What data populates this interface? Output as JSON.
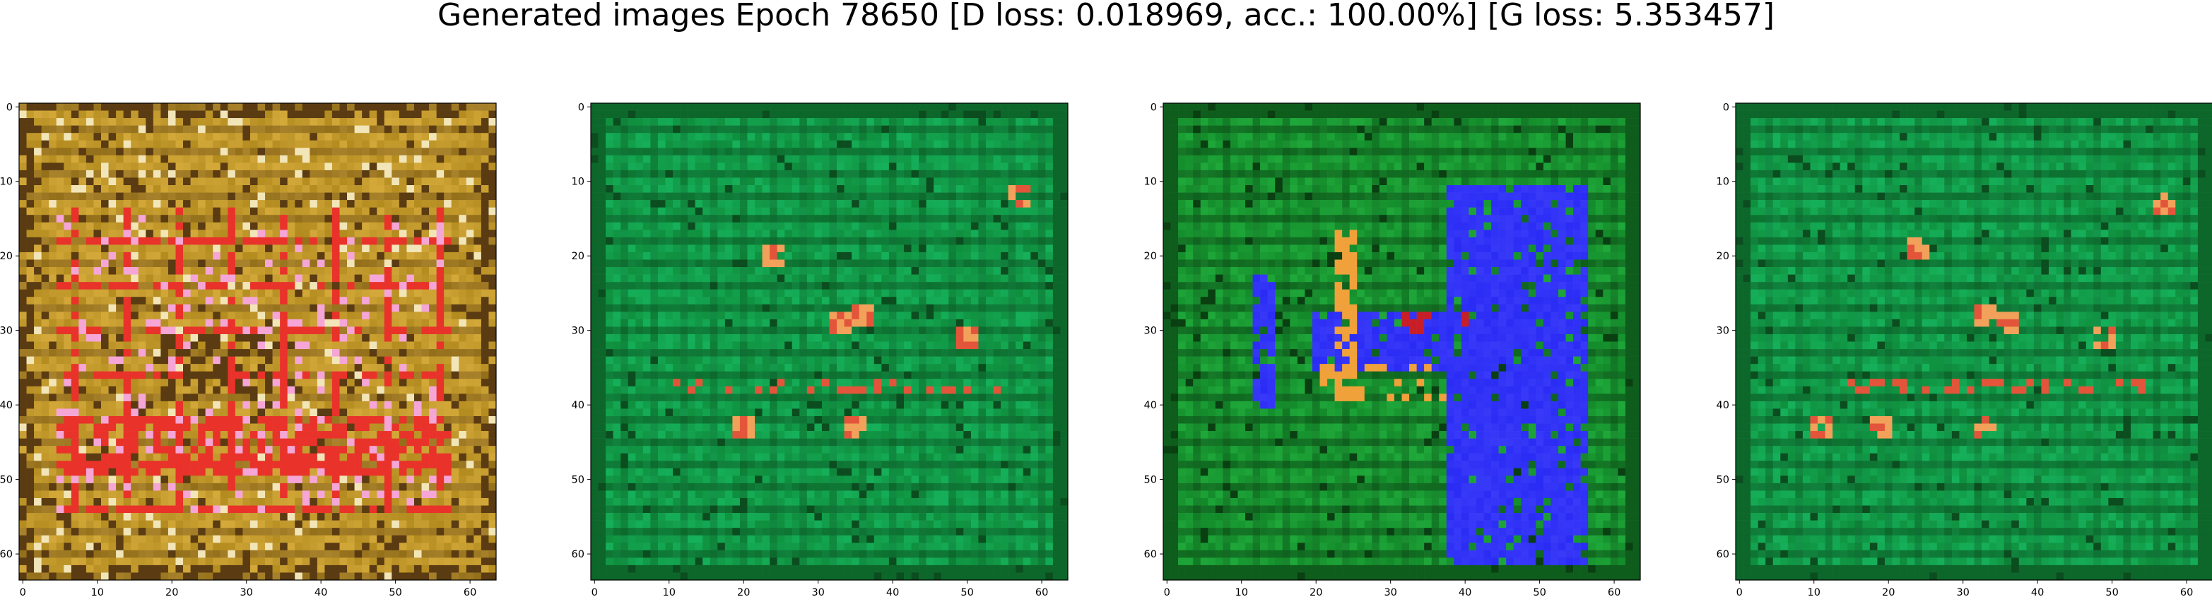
{
  "figure": {
    "suptitle": "Generated images Epoch 78650 [D loss: 0.018969, acc.: 100.00%] [G loss: 5.353457]",
    "axis_ticks": {
      "x": [
        "0",
        "10",
        "20",
        "30",
        "40",
        "50",
        "60"
      ],
      "y": [
        "0",
        "10",
        "20",
        "30",
        "40",
        "50",
        "60"
      ]
    },
    "panels": [
      {
        "name": "generated-image-1",
        "texture": "gold",
        "palette": {
          "base": "#b38b1f",
          "alt": "#d4a93a",
          "dark": "#5a3b12",
          "accent": "#e8322a",
          "accent2": "#f5a6d6",
          "light": "#f2e6b8"
        }
      },
      {
        "name": "generated-image-2",
        "texture": "green",
        "palette": {
          "base": "#0f8f3e",
          "alt": "#16b05a",
          "dark": "#0b4d1f",
          "accent": "#e3553a",
          "accent2": "#f2a15a",
          "light": "#4ed37f"
        }
      },
      {
        "name": "generated-image-3",
        "texture": "green-blue",
        "palette": {
          "base": "#138a2a",
          "alt": "#1fa83a",
          "dark": "#0a3f12",
          "accent": "#2a2cf5",
          "accent2": "#f0a13a",
          "light": "#3bc455"
        }
      },
      {
        "name": "generated-image-4",
        "texture": "green",
        "palette": {
          "base": "#0f8f3e",
          "alt": "#16b05a",
          "dark": "#0b4d1f",
          "accent": "#e3553a",
          "accent2": "#f2a15a",
          "light": "#4ed37f"
        }
      }
    ]
  }
}
